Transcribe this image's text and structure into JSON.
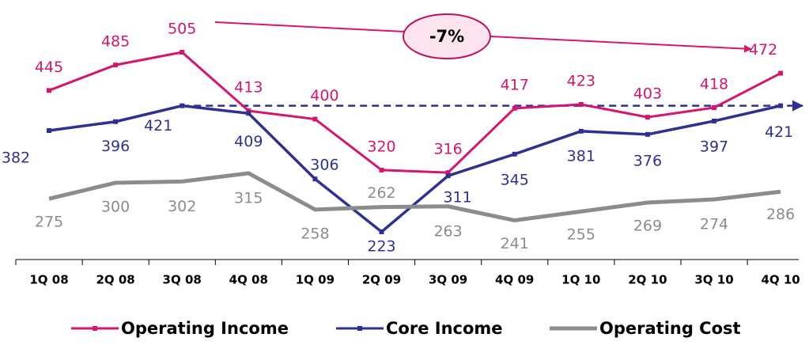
{
  "chart_data": {
    "type": "line",
    "categories": [
      "1Q 08",
      "2Q 08",
      "3Q 08",
      "4Q 08",
      "1Q 09",
      "2Q 09",
      "3Q 09",
      "4Q 09",
      "1Q 10",
      "2Q 10",
      "3Q 10",
      "4Q 10"
    ],
    "series": [
      {
        "name": "Operating Income",
        "color": "#d6156e",
        "values": [
          445,
          485,
          505,
          413,
          400,
          320,
          316,
          417,
          423,
          403,
          418,
          472
        ]
      },
      {
        "name": "Core Income",
        "color": "#2e3192",
        "values": [
          382,
          396,
          421,
          409,
          306,
          223,
          311,
          345,
          381,
          376,
          397,
          421
        ]
      },
      {
        "name": "Operating Cost",
        "color": "#8c8c8c",
        "values": [
          275,
          300,
          302,
          315,
          258,
          262,
          263,
          241,
          255,
          269,
          274,
          286
        ]
      }
    ],
    "annotation": "-7%"
  }
}
